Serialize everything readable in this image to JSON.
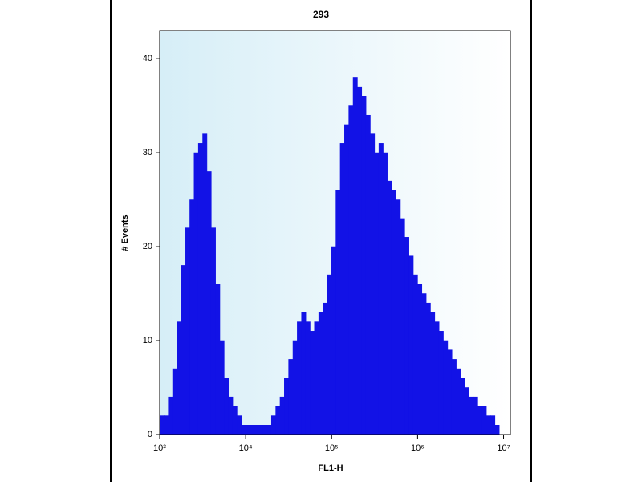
{
  "chart_data": {
    "type": "histogram",
    "title": "293",
    "x_label": "FL1-H",
    "y_label": "# Events",
    "color": "#1212e6",
    "background": "#d6eef7",
    "xscale": "log",
    "xlim": [
      1000,
      12000000
    ],
    "ylim": [
      0,
      43
    ],
    "xticks": [
      {
        "value": 1000,
        "label": "10³"
      },
      {
        "value": 10000,
        "label": "10⁴"
      },
      {
        "value": 100000,
        "label": "10⁵"
      },
      {
        "value": 1000000,
        "label": "10⁶"
      },
      {
        "value": 10000000,
        "label": "10⁷"
      }
    ],
    "yticks": [
      0,
      10,
      20,
      30,
      40
    ],
    "bins": [
      1000,
      1122,
      1259,
      1413,
      1585,
      1778,
      1995,
      2239,
      2512,
      2818,
      3162,
      3548,
      3981,
      4467,
      5012,
      5623,
      6310,
      7079,
      7943,
      8913,
      10000,
      11220,
      12589,
      14125,
      15849,
      17783,
      19953,
      22387,
      25119,
      28184,
      31623,
      35481,
      39811,
      44668,
      50119,
      56234,
      63096,
      70795,
      79433,
      89125,
      100000,
      112202,
      125893,
      141254,
      158489,
      177828,
      199526,
      223872,
      251189,
      281838,
      316228,
      354813,
      398107,
      446684,
      501187,
      562341,
      630957,
      707946,
      794328,
      891251,
      1000000,
      1122018,
      1258925,
      1412538,
      1584893,
      1778279,
      1995262,
      2238721,
      2511886,
      2818383,
      3162278,
      3548134,
      3981072,
      4466836,
      5011872,
      5623413,
      6309573,
      7079458,
      7943282,
      8912509,
      10000000
    ],
    "values": [
      2,
      2,
      4,
      7,
      12,
      18,
      22,
      25,
      30,
      31,
      32,
      28,
      22,
      16,
      10,
      6,
      4,
      3,
      2,
      1,
      1,
      1,
      1,
      1,
      1,
      1,
      2,
      3,
      4,
      6,
      8,
      10,
      12,
      13,
      12,
      11,
      12,
      13,
      14,
      17,
      20,
      26,
      31,
      33,
      35,
      38,
      37,
      36,
      34,
      32,
      30,
      31,
      30,
      27,
      26,
      25,
      23,
      21,
      19,
      17,
      16,
      15,
      14,
      13,
      12,
      11,
      10,
      9,
      8,
      7,
      6,
      5,
      4,
      4,
      3,
      3,
      2,
      2,
      1,
      0
    ]
  }
}
